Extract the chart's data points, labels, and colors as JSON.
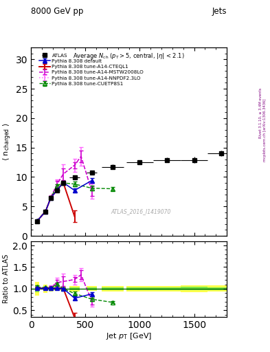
{
  "title_top": "8000 GeV pp",
  "title_right": "Jets",
  "right_label1": "Rivet 3.1.10, ≥ 3.4M events",
  "right_label2": "mcplots.cern.ch [arXiv:1306.3436]",
  "watermark": "ATLAS_2016_I1419070",
  "ylabel_main": "⟨ n_charged ⟩",
  "ylabel_ratio": "Ratio to ATLAS",
  "xlabel": "Jet p_{T} [GeV]",
  "xlim": [
    0,
    1800
  ],
  "ylim_main": [
    0,
    32
  ],
  "ylim_ratio": [
    0.35,
    2.1
  ],
  "yticks_main": [
    0,
    5,
    10,
    15,
    20,
    25,
    30
  ],
  "yticks_ratio": [
    0.5,
    1.0,
    1.5,
    2.0
  ],
  "atlas_x": [
    56,
    133,
    182,
    240,
    296,
    400,
    558,
    750,
    1000,
    1250,
    1500,
    1750
  ],
  "atlas_y": [
    2.5,
    4.1,
    6.4,
    7.7,
    9.0,
    9.9,
    10.7,
    11.7,
    12.5,
    12.9,
    12.9,
    14.0
  ],
  "atlas_xerr": [
    20,
    20,
    20,
    25,
    25,
    50,
    50,
    100,
    125,
    125,
    125,
    125
  ],
  "atlas_yerr": [
    0.2,
    0.2,
    0.2,
    0.2,
    0.2,
    0.3,
    0.3,
    0.4,
    0.4,
    0.4,
    0.5,
    0.5
  ],
  "default_x": [
    56,
    133,
    182,
    240,
    296,
    400,
    558
  ],
  "default_y": [
    2.52,
    4.14,
    6.48,
    7.78,
    9.05,
    7.72,
    9.4
  ],
  "default_yerr": [
    0.04,
    0.04,
    0.08,
    0.08,
    0.08,
    0.4,
    0.4
  ],
  "cteql1_x": [
    56,
    133,
    182,
    240,
    296,
    400
  ],
  "cteql1_y": [
    2.52,
    4.14,
    6.48,
    7.78,
    9.05,
    3.3
  ],
  "cteql1_yerr": [
    0.04,
    0.04,
    0.08,
    0.08,
    0.08,
    1.0
  ],
  "mstw_x": [
    56,
    133,
    182,
    240,
    296,
    400,
    460,
    558
  ],
  "mstw_y": [
    2.52,
    4.14,
    6.6,
    8.8,
    10.5,
    12.0,
    13.5,
    7.6
  ],
  "mstw_yerr": [
    0.08,
    0.08,
    0.2,
    0.5,
    1.0,
    0.5,
    1.0,
    0.8
  ],
  "nnpdf_x": [
    56,
    133,
    182,
    240,
    296,
    400,
    460,
    558
  ],
  "nnpdf_y": [
    2.52,
    4.14,
    6.6,
    8.8,
    10.5,
    12.0,
    13.5,
    7.6
  ],
  "nnpdf_yerr": [
    0.1,
    0.1,
    0.35,
    0.8,
    1.6,
    1.1,
    1.6,
    1.3
  ],
  "cuetp_x": [
    56,
    133,
    182,
    240,
    296,
    400,
    558,
    750
  ],
  "cuetp_y": [
    2.6,
    4.2,
    6.5,
    8.5,
    9.0,
    8.8,
    8.1,
    8.0
  ],
  "cuetp_yerr": [
    0.1,
    0.1,
    0.2,
    0.3,
    0.3,
    0.4,
    0.4,
    0.3
  ],
  "color_atlas": "#000000",
  "color_default": "#0000cc",
  "color_cteql1": "#cc0000",
  "color_mstw": "#cc00cc",
  "color_nnpdf": "#ff66ff",
  "color_cuetp": "#008800"
}
